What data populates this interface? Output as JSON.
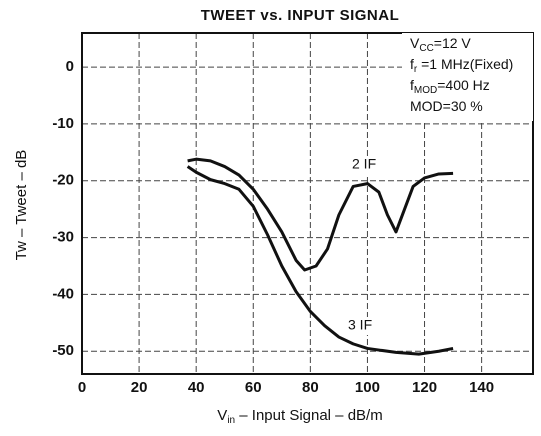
{
  "chart_data": {
    "type": "line",
    "title": "TWEET vs. INPUT SIGNAL",
    "xlabel": {
      "main": "V",
      "sub": "in",
      "rest": " – Input  Signal – dB/m"
    },
    "ylabel": "Tw – Tweet – dB",
    "xlim": [
      0,
      158
    ],
    "ylim": [
      -54,
      6
    ],
    "xticks": [
      0,
      20,
      40,
      60,
      80,
      100,
      120,
      140
    ],
    "yticks": [
      0,
      -10,
      -20,
      -30,
      -40,
      -50
    ],
    "grid": true,
    "annotations": [
      {
        "main": "V",
        "sub": "CC",
        "rest": "=12  V"
      },
      {
        "main": "f",
        "sub": "r",
        "rest": " =1  MHz(Fixed)"
      },
      {
        "main": "f",
        "sub": "MOD",
        "rest": "=400  Hz"
      },
      {
        "main": "MOD=30  %",
        "sub": "",
        "rest": ""
      }
    ],
    "series": [
      {
        "name": "2  IF",
        "color": "#111111",
        "x": [
          37,
          40,
          45,
          50,
          55,
          60,
          65,
          70,
          75,
          78,
          82,
          86,
          90,
          95,
          100,
          104,
          107,
          110,
          113,
          116,
          120,
          125,
          130
        ],
        "values": [
          -16.5,
          -16.2,
          -16.5,
          -17.5,
          -19,
          -21.5,
          -25,
          -29,
          -34,
          -35.7,
          -35,
          -32,
          -26,
          -21,
          -20.5,
          -22,
          -26,
          -29,
          -25,
          -21,
          -19.5,
          -18.8,
          -18.7
        ]
      },
      {
        "name": "3  IF",
        "color": "#111111",
        "x": [
          37,
          40,
          45,
          50,
          55,
          60,
          65,
          70,
          75,
          80,
          85,
          90,
          95,
          100,
          110,
          118,
          125,
          130
        ],
        "values": [
          -17.5,
          -18.5,
          -19.8,
          -20.5,
          -21.5,
          -24.5,
          -29.5,
          -35,
          -39.5,
          -43,
          -45.5,
          -47.5,
          -48.7,
          -49.5,
          -50.2,
          -50.5,
          -50,
          -49.5
        ]
      }
    ]
  }
}
